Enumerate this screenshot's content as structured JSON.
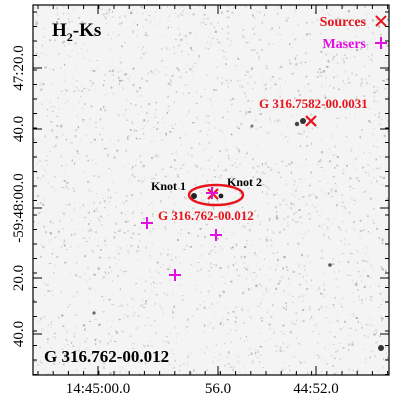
{
  "chart_data": {
    "type": "scatter",
    "title": "H2-Ks",
    "title_main": "H",
    "title_sub": "2",
    "title_tail": "-Ks",
    "field_label": "G 316.762-00.012",
    "x_ticks": [
      "14:45:00.0",
      "56.0",
      "44:52.0"
    ],
    "y_ticks": [
      "47:20.0",
      "40.0",
      "-59:48:00.0",
      "20.0",
      "40.0"
    ],
    "legend": {
      "placement": "top-right",
      "entries": [
        {
          "label": "Sources",
          "marker": "x",
          "color": "#e8141b"
        },
        {
          "label": "Masers",
          "marker": "+",
          "color": "#e010e0"
        }
      ]
    },
    "sources": [
      {
        "label": "G 316.7582-00.0031",
        "ra_s": 53.3,
        "dec_s": 37.5
      },
      {
        "label": "G 316.762-00.012",
        "ra_s": 56.5,
        "dec_s": 57.5
      }
    ],
    "masers": [
      {
        "ra_s": 56.5,
        "dec_s": 57.2
      },
      {
        "ra_s": 59.5,
        "dec_s": 4.5
      },
      {
        "ra_s": 56.3,
        "dec_s": 6.8
      },
      {
        "ra_s": 58.2,
        "dec_s": 18.5
      }
    ],
    "knots": [
      {
        "label": "Knot 1",
        "ra_s": 57.1,
        "dec_s": 57.4
      },
      {
        "label": "Knot 2",
        "ra_s": 56.0,
        "dec_s": 57.0
      }
    ]
  },
  "colors": {
    "source": "#e8141b",
    "maser": "#e010e0",
    "ellipse": "#e8141b"
  }
}
